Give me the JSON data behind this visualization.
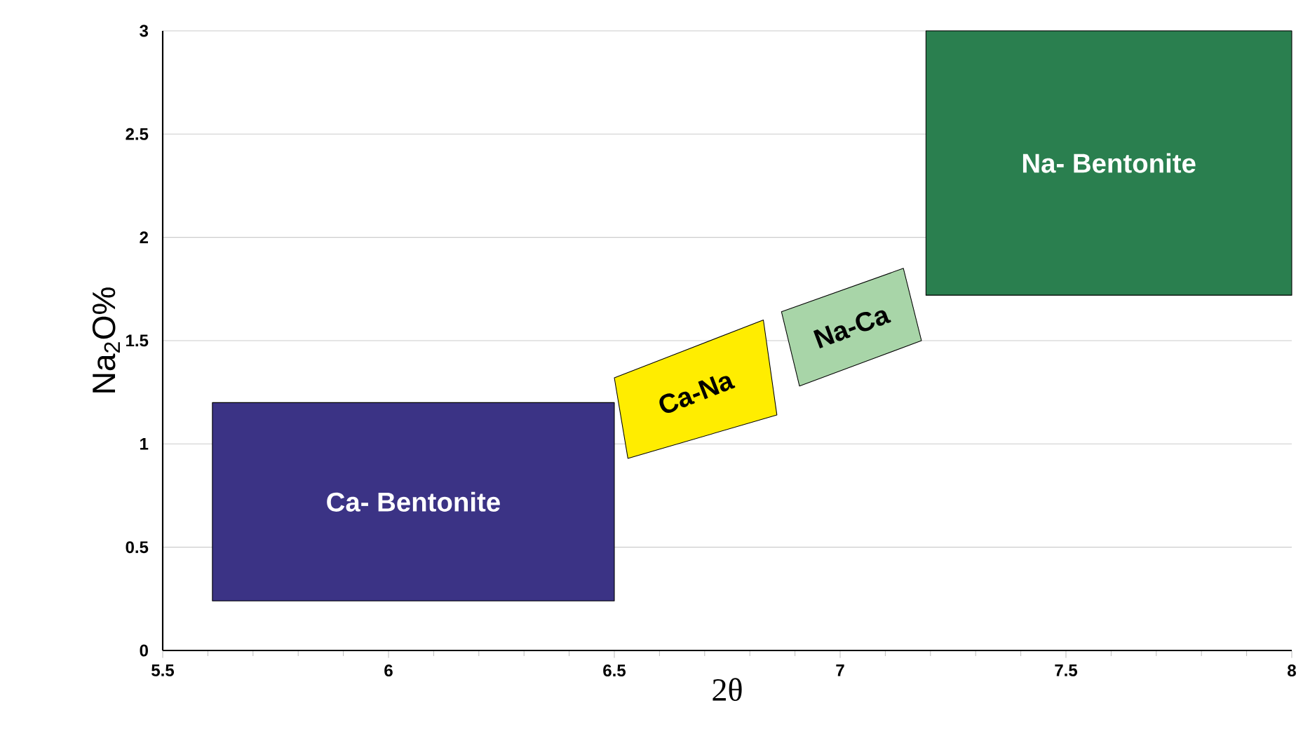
{
  "chart_data": {
    "type": "area",
    "xlabel": "2θ",
    "ylabel": "Na$_{2}$O%",
    "xlim": [
      5.5,
      8
    ],
    "ylim": [
      0,
      3
    ],
    "xticks": [
      5.5,
      6,
      6.5,
      7,
      7.5,
      8
    ],
    "yticks": [
      0,
      0.5,
      1,
      1.5,
      2,
      2.5,
      3
    ],
    "grid": "y",
    "series": [
      {
        "name": "Ca- Bentonite",
        "color": "#3b3385",
        "x": [
          5.61,
          6.5,
          6.5,
          5.61
        ],
        "values": [
          0.24,
          0.24,
          1.2,
          1.2
        ]
      },
      {
        "name": "Ca-Na",
        "color": "#ffed00",
        "x": [
          6.53,
          6.5,
          6.83,
          6.86
        ],
        "values": [
          0.93,
          1.32,
          1.6,
          1.14
        ]
      },
      {
        "name": "Na-Ca",
        "color": "#a8d5a8",
        "x": [
          6.91,
          6.87,
          7.14,
          7.18
        ],
        "values": [
          1.28,
          1.64,
          1.85,
          1.5
        ]
      },
      {
        "name": "Na- Bentonite",
        "color": "#2a7f4f",
        "x": [
          7.19,
          8,
          8,
          7.19
        ],
        "values": [
          1.72,
          1.72,
          3,
          3
        ]
      }
    ]
  }
}
